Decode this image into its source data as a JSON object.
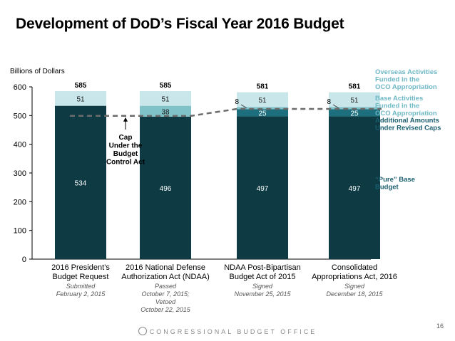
{
  "header": {
    "title": "Development of DoD’s Fiscal Year 2016 Budget"
  },
  "footer": {
    "org": "CONGRESSIONAL BUDGET OFFICE",
    "page_number": "16"
  },
  "colors": {
    "base": "#0e3a44",
    "additional": "#1e6f7e",
    "base_oco": "#7fc3c9",
    "oco": "#c9e6ea",
    "cap_line": "#6b6b6b",
    "legend_light": "#6fb8c6",
    "legend_dark": "#1a5e6e"
  },
  "chart_data": {
    "type": "bar",
    "stacked": true,
    "ylabel": "Billions of Dollars",
    "ylim": [
      0,
      600
    ],
    "yticks": [
      0,
      100,
      200,
      300,
      400,
      500,
      600
    ],
    "categories": [
      [
        "2016 President’s",
        "Budget Request"
      ],
      [
        "2016 National Defense",
        "Authorization Act (NDAA)"
      ],
      [
        "NDAA Post-Bipartisan",
        "Budget Act of 2015"
      ],
      [
        "Consolidated",
        "Appropriations Act, 2016"
      ]
    ],
    "dates": [
      [
        "Submitted",
        "February 2, 2015"
      ],
      [
        "Passed",
        "October 7, 2015;",
        "Vetoed",
        "October 22, 2015"
      ],
      [
        "Signed",
        "November 25, 2015"
      ],
      [
        "Signed",
        "December 18, 2015"
      ]
    ],
    "series": [
      {
        "name": "“Pure” Base Budget",
        "key": "base",
        "values": [
          534,
          496,
          497,
          497
        ]
      },
      {
        "name": "Additional Amounts Under Revised Caps",
        "key": "additional",
        "values": [
          0,
          0,
          25,
          25
        ]
      },
      {
        "name": "Base Activities Funded in the OCO Appropriation",
        "key": "base_oco",
        "values": [
          0,
          38,
          8,
          8
        ]
      },
      {
        "name": "Overseas Activities Funded in the OCO Appropriation",
        "key": "oco",
        "values": [
          51,
          51,
          51,
          51
        ]
      }
    ],
    "segment_labels": [
      {
        "base": "534",
        "additional": "",
        "base_oco": "",
        "oco": "51"
      },
      {
        "base": "496",
        "additional": "",
        "base_oco": "38",
        "oco": "51"
      },
      {
        "base": "497",
        "additional": "25",
        "base_oco": "",
        "oco": "51",
        "callout": "8"
      },
      {
        "base": "497",
        "additional": "25",
        "base_oco": "",
        "oco": "51",
        "callout": "8"
      }
    ],
    "totals": [
      "585",
      "585",
      "581",
      "581"
    ],
    "cap_line": {
      "label": [
        "Cap",
        "Under the",
        "Budget",
        "Control Act"
      ],
      "values": [
        499,
        499,
        523,
        523
      ]
    },
    "legend": [
      {
        "key": "oco",
        "lines": [
          "Overseas Activities",
          "Funded in the",
          "OCO Appropriation"
        ]
      },
      {
        "key": "base_oco",
        "lines": [
          "Base Activities",
          "Funded in the",
          "OCO Appropriation"
        ]
      },
      {
        "key": "additional",
        "lines": [
          "Additional Amounts",
          "Under Revised Caps"
        ]
      },
      {
        "key": "base",
        "lines": [
          "“Pure” Base",
          "Budget"
        ]
      }
    ]
  }
}
